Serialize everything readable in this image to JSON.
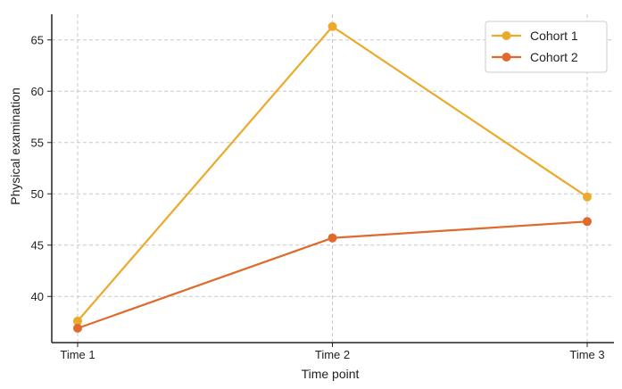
{
  "chart_data": {
    "type": "line",
    "title": "",
    "xlabel": "Time point",
    "ylabel": "Physical examination",
    "categories": [
      "Time 1",
      "Time 2",
      "Time 3"
    ],
    "ylim": [
      35.5,
      67.5
    ],
    "yticks": [
      40,
      45,
      50,
      55,
      60,
      65
    ],
    "grid": true,
    "legend_position": "top-right",
    "series": [
      {
        "name": "Cohort 1",
        "values": [
          37.6,
          66.3,
          49.7
        ],
        "color": "#EBAA2B"
      },
      {
        "name": "Cohort 2",
        "values": [
          36.9,
          45.7,
          47.3
        ],
        "color": "#E06A2C"
      }
    ]
  }
}
